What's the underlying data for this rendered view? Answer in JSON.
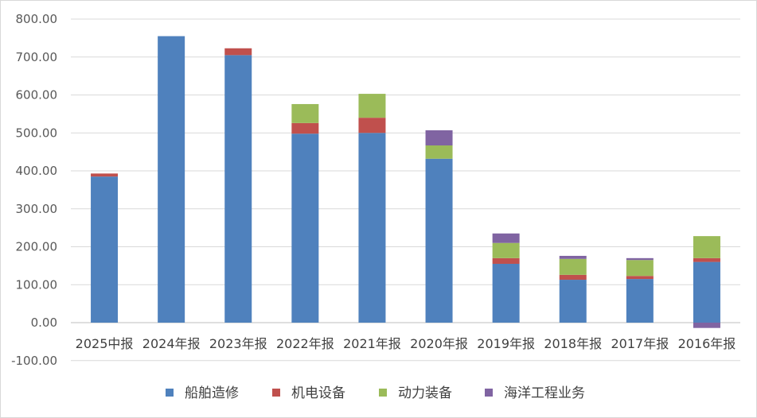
{
  "chart_data": {
    "type": "bar",
    "stacked": true,
    "categories": [
      "2025中报",
      "2024年报",
      "2023年报",
      "2022年报",
      "2021年报",
      "2020年报",
      "2019年报",
      "2018年报",
      "2017年报",
      "2016年报"
    ],
    "series": [
      {
        "name": "船舶造修",
        "color": "#4f81bd",
        "values": [
          385,
          755,
          705,
          498,
          500,
          432,
          155,
          113,
          115,
          160
        ]
      },
      {
        "name": "机电设备",
        "color": "#c0504d",
        "values": [
          8,
          0,
          18,
          28,
          40,
          0,
          15,
          13,
          8,
          10
        ]
      },
      {
        "name": "动力装备",
        "color": "#9bbb59",
        "values": [
          0,
          0,
          0,
          50,
          63,
          35,
          40,
          42,
          42,
          58
        ]
      },
      {
        "name": "海洋工程业务",
        "color": "#8064a2",
        "values": [
          0,
          0,
          0,
          0,
          0,
          40,
          25,
          8,
          5,
          -14
        ]
      }
    ],
    "ylim": [
      -100,
      800
    ],
    "yticks": [
      "-100.00",
      "0.00",
      "100.00",
      "200.00",
      "300.00",
      "400.00",
      "500.00",
      "600.00",
      "700.00",
      "800.00"
    ],
    "grid": true,
    "legend": "bottom"
  }
}
